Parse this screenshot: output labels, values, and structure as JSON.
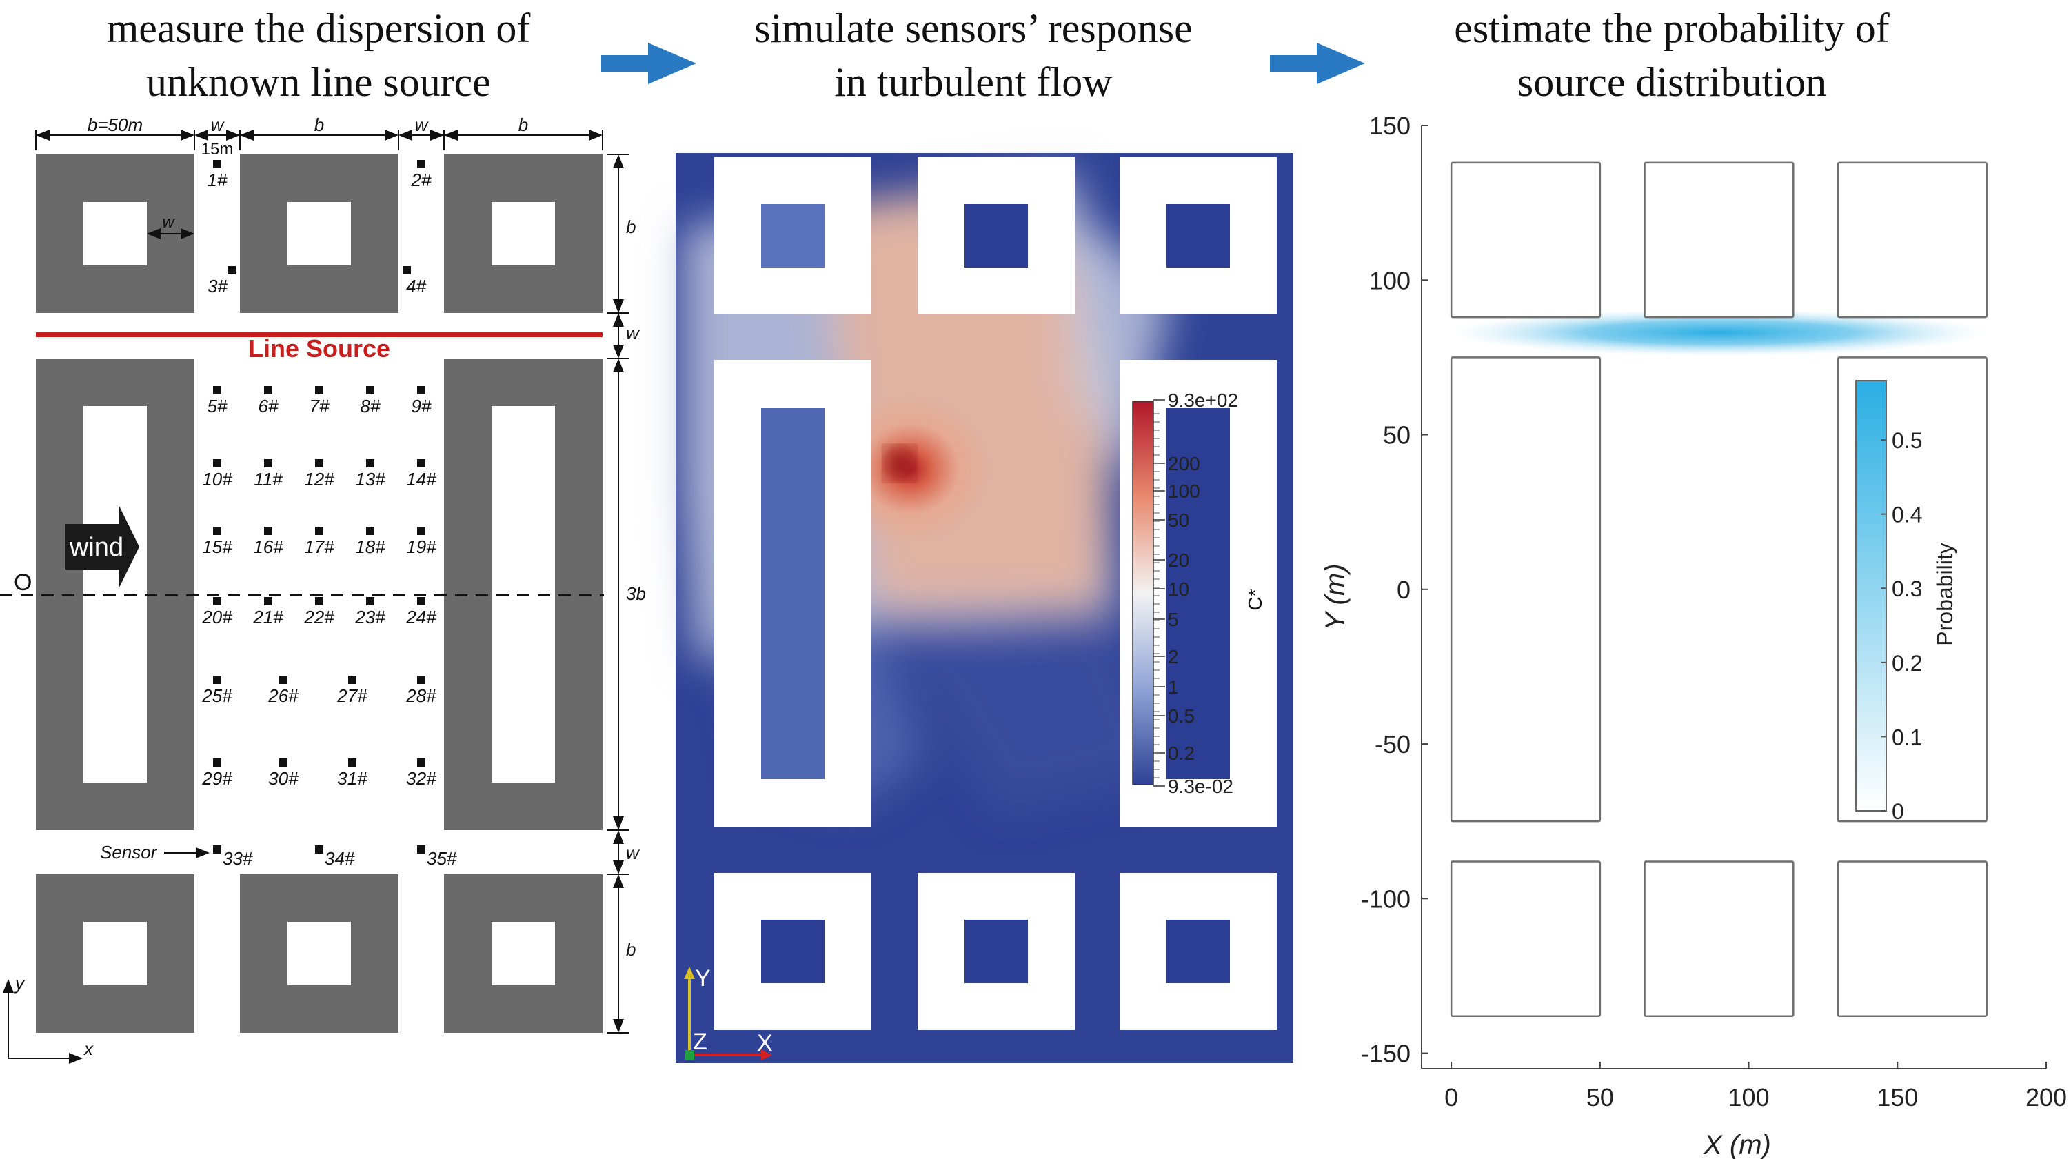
{
  "titles": {
    "step1": [
      "measure the dispersion of",
      "unknown line source"
    ],
    "step2": [
      "simulate sensors’ response",
      "in turbulent flow"
    ],
    "step3": [
      "estimate the probability of",
      "source distribution"
    ]
  },
  "colors": {
    "arrow": "#2a7ac3",
    "building": "#6a6a6a",
    "line_source": "#c81e1e",
    "cfd_background": "#2f4296",
    "probability": "#3cb4e6"
  },
  "layout_diagram": {
    "dims": {
      "b_first": "b=50m",
      "w1": "w",
      "b2": "b",
      "w2": "w",
      "b3": "b",
      "w_15m": "15m",
      "w_inner": "w",
      "right_b_top": "b",
      "right_w_top": "w",
      "right_3b": "3b",
      "right_w_bottom": "w",
      "right_b_bottom": "b"
    },
    "line_source_label": "Line Source",
    "wind_label": "wind",
    "origin_label": "O",
    "sensor_label": "Sensor",
    "axis_x": "x",
    "axis_y": "y",
    "sensors": [
      "1#",
      "2#",
      "3#",
      "4#",
      "5#",
      "6#",
      "7#",
      "8#",
      "9#",
      "10#",
      "11#",
      "12#",
      "13#",
      "14#",
      "15#",
      "16#",
      "17#",
      "18#",
      "19#",
      "20#",
      "21#",
      "22#",
      "23#",
      "24#",
      "25#",
      "26#",
      "27#",
      "28#",
      "29#",
      "30#",
      "31#",
      "32#",
      "33#",
      "34#",
      "35#"
    ]
  },
  "cfd_panel": {
    "colorbar_ticks": [
      "9.3e+02",
      "200",
      "100",
      "50",
      "20",
      "10",
      "5",
      "2",
      "1",
      "0.5",
      "0.2",
      "9.3e-02"
    ],
    "colorbar_label": "C*",
    "axis_y": "Y",
    "axis_z": "Z",
    "axis_x": "X"
  },
  "chart_data": {
    "type": "heatmap",
    "xlabel": "X (m)",
    "ylabel": "Y (m)",
    "xlim": [
      -10,
      200
    ],
    "ylim": [
      -155,
      150
    ],
    "xticks": [
      0,
      50,
      100,
      150,
      200
    ],
    "yticks": [
      150,
      100,
      50,
      0,
      -50,
      -100,
      -150
    ],
    "colorbar": {
      "label": "Probability",
      "ticks": [
        0,
        0.1,
        0.2,
        0.3,
        0.4,
        0.5
      ],
      "max": 0.58
    },
    "buildings": [
      {
        "x": [
          0,
          50
        ],
        "y": [
          88,
          138
        ]
      },
      {
        "x": [
          65,
          115
        ],
        "y": [
          88,
          138
        ]
      },
      {
        "x": [
          130,
          180
        ],
        "y": [
          88,
          138
        ]
      },
      {
        "x": [
          0,
          50
        ],
        "y": [
          -75,
          75
        ]
      },
      {
        "x": [
          130,
          180
        ],
        "y": [
          -75,
          75
        ]
      },
      {
        "x": [
          0,
          50
        ],
        "y": [
          -138,
          -88
        ]
      },
      {
        "x": [
          65,
          115
        ],
        "y": [
          -138,
          -88
        ]
      },
      {
        "x": [
          130,
          180
        ],
        "y": [
          -138,
          -88
        ]
      }
    ],
    "high_probability_band": {
      "x": [
        0,
        180
      ],
      "y_center": 83,
      "peak_x": 90
    }
  }
}
